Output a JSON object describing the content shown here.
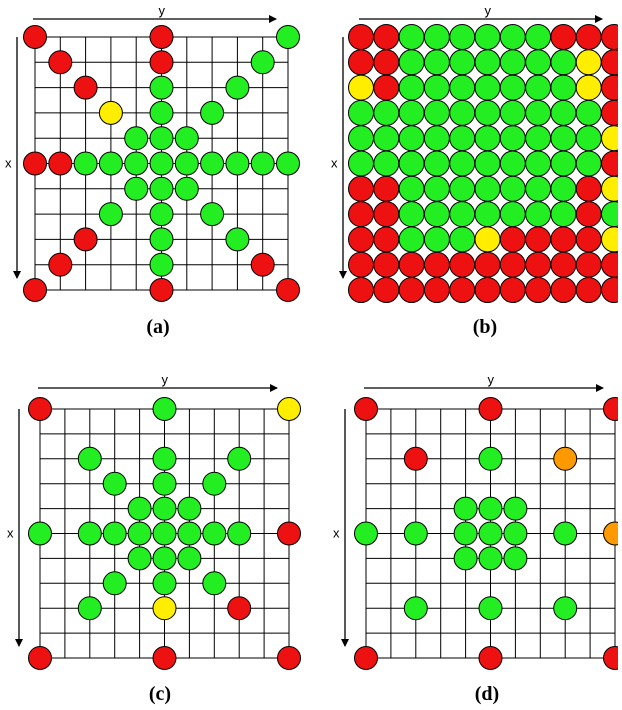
{
  "axis_labels": {
    "x": "x",
    "y": "y"
  },
  "colors": {
    "green": "#22ee22",
    "red": "#ee1111",
    "yellow": "#ffee00",
    "orange": "#ff9900",
    "grid": "#000000"
  },
  "panels": [
    {
      "id": "a",
      "caption": "(a)",
      "grid_size": 11,
      "points": [
        {
          "r": 0,
          "c": 0,
          "color": "red"
        },
        {
          "r": 0,
          "c": 5,
          "color": "red"
        },
        {
          "r": 0,
          "c": 10,
          "color": "green"
        },
        {
          "r": 1,
          "c": 1,
          "color": "red"
        },
        {
          "r": 1,
          "c": 5,
          "color": "red"
        },
        {
          "r": 1,
          "c": 9,
          "color": "green"
        },
        {
          "r": 2,
          "c": 2,
          "color": "red"
        },
        {
          "r": 2,
          "c": 5,
          "color": "green"
        },
        {
          "r": 2,
          "c": 8,
          "color": "green"
        },
        {
          "r": 3,
          "c": 3,
          "color": "yellow"
        },
        {
          "r": 3,
          "c": 5,
          "color": "green"
        },
        {
          "r": 3,
          "c": 7,
          "color": "green"
        },
        {
          "r": 4,
          "c": 4,
          "color": "green"
        },
        {
          "r": 4,
          "c": 5,
          "color": "green"
        },
        {
          "r": 4,
          "c": 6,
          "color": "green"
        },
        {
          "r": 5,
          "c": 0,
          "color": "red"
        },
        {
          "r": 5,
          "c": 1,
          "color": "red"
        },
        {
          "r": 5,
          "c": 2,
          "color": "green"
        },
        {
          "r": 5,
          "c": 3,
          "color": "green"
        },
        {
          "r": 5,
          "c": 4,
          "color": "green"
        },
        {
          "r": 5,
          "c": 5,
          "color": "green"
        },
        {
          "r": 5,
          "c": 6,
          "color": "green"
        },
        {
          "r": 5,
          "c": 7,
          "color": "green"
        },
        {
          "r": 5,
          "c": 8,
          "color": "green"
        },
        {
          "r": 5,
          "c": 9,
          "color": "green"
        },
        {
          "r": 5,
          "c": 10,
          "color": "green"
        },
        {
          "r": 6,
          "c": 4,
          "color": "green"
        },
        {
          "r": 6,
          "c": 5,
          "color": "green"
        },
        {
          "r": 6,
          "c": 6,
          "color": "green"
        },
        {
          "r": 7,
          "c": 3,
          "color": "green"
        },
        {
          "r": 7,
          "c": 5,
          "color": "green"
        },
        {
          "r": 7,
          "c": 7,
          "color": "green"
        },
        {
          "r": 8,
          "c": 2,
          "color": "red"
        },
        {
          "r": 8,
          "c": 5,
          "color": "green"
        },
        {
          "r": 8,
          "c": 8,
          "color": "green"
        },
        {
          "r": 9,
          "c": 1,
          "color": "red"
        },
        {
          "r": 9,
          "c": 5,
          "color": "green"
        },
        {
          "r": 9,
          "c": 9,
          "color": "red"
        },
        {
          "r": 10,
          "c": 0,
          "color": "red"
        },
        {
          "r": 10,
          "c": 5,
          "color": "red"
        },
        {
          "r": 10,
          "c": 10,
          "color": "red"
        }
      ]
    },
    {
      "id": "b",
      "caption": "(b)",
      "grid_size": 11,
      "rows": [
        "RRGGGGGGRRR",
        "RRGGGGGGGYR",
        "YRGGGGGGGYR",
        "GGGGGGGGGGR",
        "GGGGGGGGGGY",
        "GGGGGGGGGGR",
        "RRGGGGGGGRY",
        "RRGGGGGGGRG",
        "RRGGGYRRRRY",
        "RRRRRRRRRRR",
        "RRRRRRRRRRR"
      ]
    },
    {
      "id": "c",
      "caption": "(c)",
      "grid_size": 11,
      "points": [
        {
          "r": 0,
          "c": 0,
          "color": "red"
        },
        {
          "r": 0,
          "c": 5,
          "color": "green"
        },
        {
          "r": 0,
          "c": 10,
          "color": "yellow"
        },
        {
          "r": 2,
          "c": 2,
          "color": "green"
        },
        {
          "r": 2,
          "c": 5,
          "color": "green"
        },
        {
          "r": 2,
          "c": 8,
          "color": "green"
        },
        {
          "r": 3,
          "c": 3,
          "color": "green"
        },
        {
          "r": 3,
          "c": 5,
          "color": "green"
        },
        {
          "r": 3,
          "c": 7,
          "color": "green"
        },
        {
          "r": 4,
          "c": 4,
          "color": "green"
        },
        {
          "r": 4,
          "c": 5,
          "color": "green"
        },
        {
          "r": 4,
          "c": 6,
          "color": "green"
        },
        {
          "r": 5,
          "c": 0,
          "color": "green"
        },
        {
          "r": 5,
          "c": 2,
          "color": "green"
        },
        {
          "r": 5,
          "c": 3,
          "color": "green"
        },
        {
          "r": 5,
          "c": 4,
          "color": "green"
        },
        {
          "r": 5,
          "c": 5,
          "color": "green"
        },
        {
          "r": 5,
          "c": 6,
          "color": "green"
        },
        {
          "r": 5,
          "c": 7,
          "color": "green"
        },
        {
          "r": 5,
          "c": 8,
          "color": "green"
        },
        {
          "r": 5,
          "c": 10,
          "color": "red"
        },
        {
          "r": 6,
          "c": 4,
          "color": "green"
        },
        {
          "r": 6,
          "c": 5,
          "color": "green"
        },
        {
          "r": 6,
          "c": 6,
          "color": "green"
        },
        {
          "r": 7,
          "c": 3,
          "color": "green"
        },
        {
          "r": 7,
          "c": 5,
          "color": "green"
        },
        {
          "r": 7,
          "c": 7,
          "color": "green"
        },
        {
          "r": 8,
          "c": 2,
          "color": "green"
        },
        {
          "r": 8,
          "c": 5,
          "color": "yellow"
        },
        {
          "r": 8,
          "c": 8,
          "color": "red"
        },
        {
          "r": 10,
          "c": 0,
          "color": "red"
        },
        {
          "r": 10,
          "c": 5,
          "color": "red"
        },
        {
          "r": 10,
          "c": 10,
          "color": "red"
        }
      ]
    },
    {
      "id": "d",
      "caption": "(d)",
      "grid_size": 11,
      "points": [
        {
          "r": 0,
          "c": 0,
          "color": "red"
        },
        {
          "r": 0,
          "c": 5,
          "color": "red"
        },
        {
          "r": 0,
          "c": 10,
          "color": "red"
        },
        {
          "r": 2,
          "c": 2,
          "color": "red"
        },
        {
          "r": 2,
          "c": 5,
          "color": "green"
        },
        {
          "r": 2,
          "c": 8,
          "color": "orange"
        },
        {
          "r": 4,
          "c": 4,
          "color": "green"
        },
        {
          "r": 4,
          "c": 5,
          "color": "green"
        },
        {
          "r": 4,
          "c": 6,
          "color": "green"
        },
        {
          "r": 5,
          "c": 0,
          "color": "green"
        },
        {
          "r": 5,
          "c": 2,
          "color": "green"
        },
        {
          "r": 5,
          "c": 4,
          "color": "green"
        },
        {
          "r": 5,
          "c": 5,
          "color": "green"
        },
        {
          "r": 5,
          "c": 6,
          "color": "green"
        },
        {
          "r": 5,
          "c": 8,
          "color": "green"
        },
        {
          "r": 5,
          "c": 10,
          "color": "orange"
        },
        {
          "r": 6,
          "c": 4,
          "color": "green"
        },
        {
          "r": 6,
          "c": 5,
          "color": "green"
        },
        {
          "r": 6,
          "c": 6,
          "color": "green"
        },
        {
          "r": 8,
          "c": 2,
          "color": "green"
        },
        {
          "r": 8,
          "c": 5,
          "color": "green"
        },
        {
          "r": 8,
          "c": 8,
          "color": "green"
        },
        {
          "r": 10,
          "c": 0,
          "color": "red"
        },
        {
          "r": 10,
          "c": 5,
          "color": "red"
        },
        {
          "r": 10,
          "c": 10,
          "color": "red"
        }
      ]
    }
  ]
}
